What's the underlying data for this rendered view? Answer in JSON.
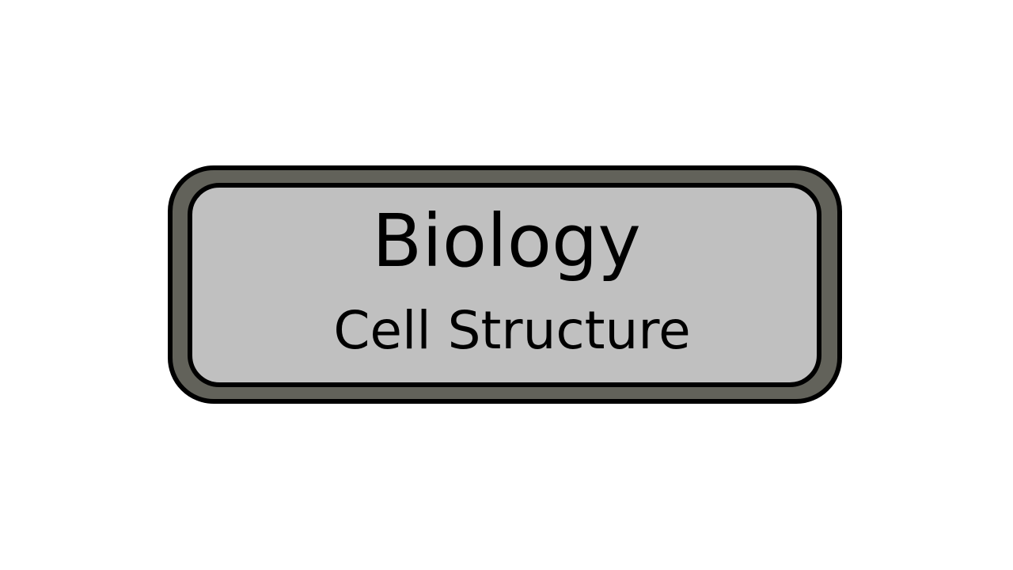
{
  "label": {
    "title": "Biology",
    "subtitle": "Cell Structure"
  },
  "colors": {
    "background": "#ffffff",
    "outer_frame": "#62625a",
    "inner_panel": "#c0c0c0",
    "outline": "#000000",
    "text": "#000000"
  }
}
